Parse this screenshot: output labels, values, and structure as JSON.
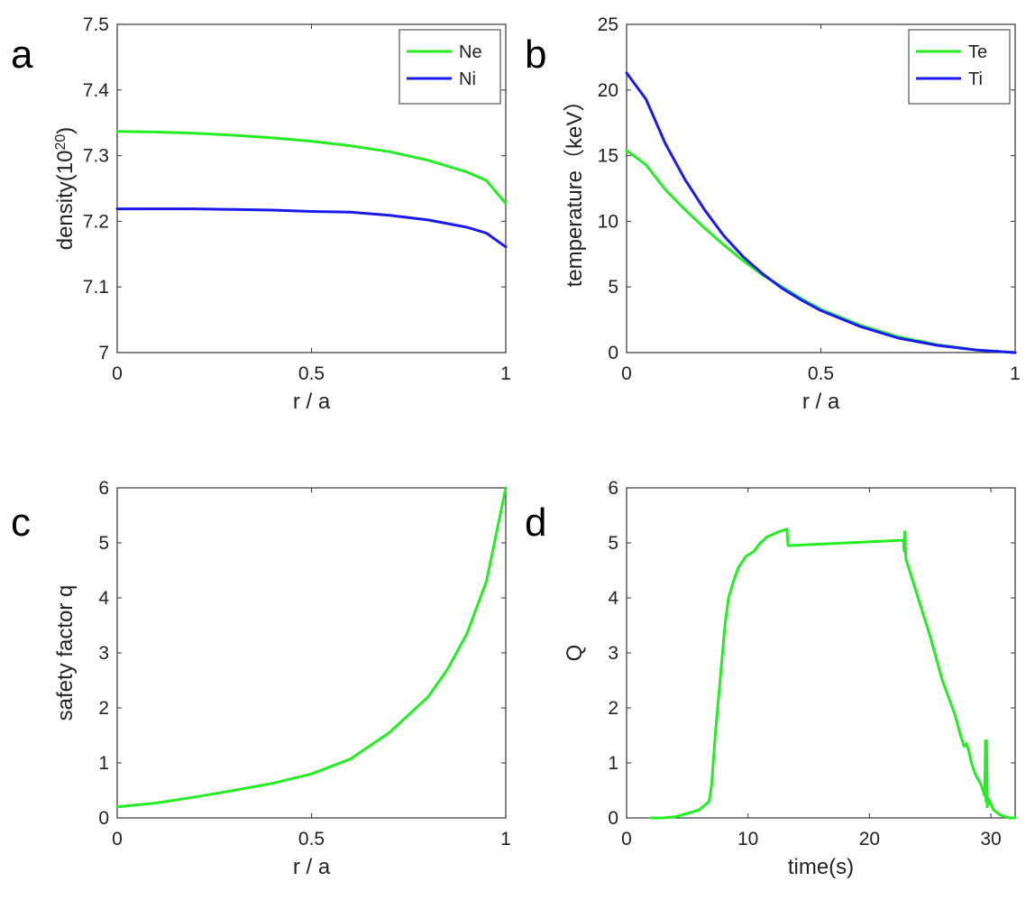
{
  "chart_data": [
    {
      "panel": "a",
      "type": "line",
      "xlabel": "r / a",
      "ylabel": "density(10",
      "ylabel_sup": "20",
      "ylabel_suffix": ")",
      "xlim": [
        0,
        1
      ],
      "ylim": [
        7,
        7.5
      ],
      "xticks": [
        0,
        0.5,
        1
      ],
      "xtick_labels": [
        "0",
        "0.5",
        "1"
      ],
      "yticks": [
        7,
        7.1,
        7.2,
        7.3,
        7.4,
        7.5
      ],
      "ytick_labels": [
        "7",
        "7.1",
        "7.2",
        "7.3",
        "7.4",
        "7.5"
      ],
      "grid": false,
      "legend": "top-right",
      "series": [
        {
          "name": "Ne",
          "color": "#22ee22",
          "x": [
            0,
            0.1,
            0.2,
            0.3,
            0.4,
            0.5,
            0.6,
            0.7,
            0.8,
            0.9,
            0.95,
            1.0
          ],
          "y": [
            7.337,
            7.336,
            7.334,
            7.331,
            7.327,
            7.322,
            7.315,
            7.306,
            7.293,
            7.275,
            7.262,
            7.227
          ]
        },
        {
          "name": "Ni",
          "color": "#1a1aee",
          "x": [
            0,
            0.1,
            0.2,
            0.3,
            0.4,
            0.5,
            0.6,
            0.7,
            0.8,
            0.9,
            0.95,
            1.0
          ],
          "y": [
            7.219,
            7.219,
            7.219,
            7.218,
            7.217,
            7.215,
            7.214,
            7.209,
            7.202,
            7.191,
            7.182,
            7.161
          ]
        }
      ]
    },
    {
      "panel": "b",
      "type": "line",
      "xlabel": "r / a",
      "ylabel": "temperature（keV）",
      "xlim": [
        0,
        1
      ],
      "ylim": [
        0,
        25
      ],
      "xticks": [
        0,
        0.5,
        1
      ],
      "xtick_labels": [
        "0",
        "0.5",
        "1"
      ],
      "yticks": [
        0,
        5,
        10,
        15,
        20,
        25
      ],
      "ytick_labels": [
        "0",
        "5",
        "10",
        "15",
        "20",
        "25"
      ],
      "grid": false,
      "legend": "top-right",
      "series": [
        {
          "name": "Te",
          "color": "#22ee22",
          "x": [
            0,
            0.05,
            0.1,
            0.15,
            0.2,
            0.25,
            0.3,
            0.35,
            0.4,
            0.45,
            0.5,
            0.6,
            0.7,
            0.8,
            0.9,
            1.0
          ],
          "y": [
            15.4,
            14.3,
            12.4,
            10.9,
            9.5,
            8.2,
            7.0,
            5.9,
            5.0,
            4.1,
            3.3,
            2.1,
            1.2,
            0.6,
            0.2,
            0.0
          ]
        },
        {
          "name": "Ti",
          "color": "#1a1aee",
          "x": [
            0,
            0.05,
            0.1,
            0.15,
            0.2,
            0.25,
            0.3,
            0.35,
            0.4,
            0.45,
            0.5,
            0.6,
            0.7,
            0.8,
            0.9,
            1.0
          ],
          "y": [
            21.3,
            19.3,
            15.9,
            13.2,
            10.9,
            8.9,
            7.3,
            6.0,
            4.9,
            4.0,
            3.2,
            2.0,
            1.1,
            0.55,
            0.2,
            0.0
          ]
        }
      ]
    },
    {
      "panel": "c",
      "type": "line",
      "xlabel": "r / a",
      "ylabel": "safety factor q",
      "xlim": [
        0,
        1
      ],
      "ylim": [
        0,
        6
      ],
      "xticks": [
        0,
        0.5,
        1
      ],
      "xtick_labels": [
        "0",
        "0.5",
        "1"
      ],
      "yticks": [
        0,
        1,
        2,
        3,
        4,
        5,
        6
      ],
      "ytick_labels": [
        "0",
        "1",
        "2",
        "3",
        "4",
        "5",
        "6"
      ],
      "grid": false,
      "series": [
        {
          "color": "#22ee22",
          "x": [
            0,
            0.1,
            0.2,
            0.3,
            0.4,
            0.5,
            0.6,
            0.7,
            0.8,
            0.85,
            0.9,
            0.95,
            1.0
          ],
          "y": [
            0.2,
            0.27,
            0.38,
            0.5,
            0.63,
            0.8,
            1.07,
            1.55,
            2.2,
            2.7,
            3.35,
            4.3,
            6.0
          ]
        }
      ]
    },
    {
      "panel": "d",
      "type": "line",
      "xlabel": "time(s)",
      "ylabel": "Q",
      "xlim": [
        0,
        32
      ],
      "ylim": [
        0,
        6
      ],
      "xticks": [
        0,
        10,
        20,
        30
      ],
      "xtick_labels": [
        "0",
        "10",
        "20",
        "30"
      ],
      "yticks": [
        0,
        1,
        2,
        3,
        4,
        5,
        6
      ],
      "ytick_labels": [
        "0",
        "1",
        "2",
        "3",
        "4",
        "5",
        "6"
      ],
      "grid": false,
      "series": [
        {
          "color": "#22ee22",
          "x": [
            2.0,
            3.0,
            4.0,
            5.0,
            6.0,
            6.8,
            7.0,
            7.3,
            7.7,
            8.1,
            8.4,
            8.8,
            9.2,
            9.8,
            10.5,
            11.0,
            11.3,
            11.5,
            12.0,
            12.5,
            13.2,
            13.3,
            13.4,
            22.8,
            22.85,
            22.9,
            23.0,
            23.3,
            24.0,
            25.0,
            26.0,
            27.0,
            27.5,
            27.8,
            28.0,
            28.2,
            28.4,
            28.7,
            29.2,
            29.5,
            29.55,
            29.6,
            29.65,
            29.7,
            29.8,
            30.2,
            30.8,
            31.5,
            32.0
          ],
          "y": [
            0.0,
            0.0,
            0.02,
            0.08,
            0.15,
            0.3,
            0.6,
            1.5,
            2.5,
            3.5,
            4.0,
            4.3,
            4.55,
            4.75,
            4.85,
            5.0,
            5.05,
            5.1,
            5.15,
            5.2,
            5.25,
            4.95,
            4.95,
            5.05,
            4.85,
            5.2,
            4.7,
            4.5,
            4.0,
            3.3,
            2.5,
            1.9,
            1.5,
            1.3,
            1.35,
            1.2,
            1.0,
            0.8,
            0.6,
            0.4,
            1.4,
            0.3,
            1.4,
            0.2,
            0.35,
            0.15,
            0.05,
            0.0,
            0.0
          ]
        }
      ]
    }
  ]
}
